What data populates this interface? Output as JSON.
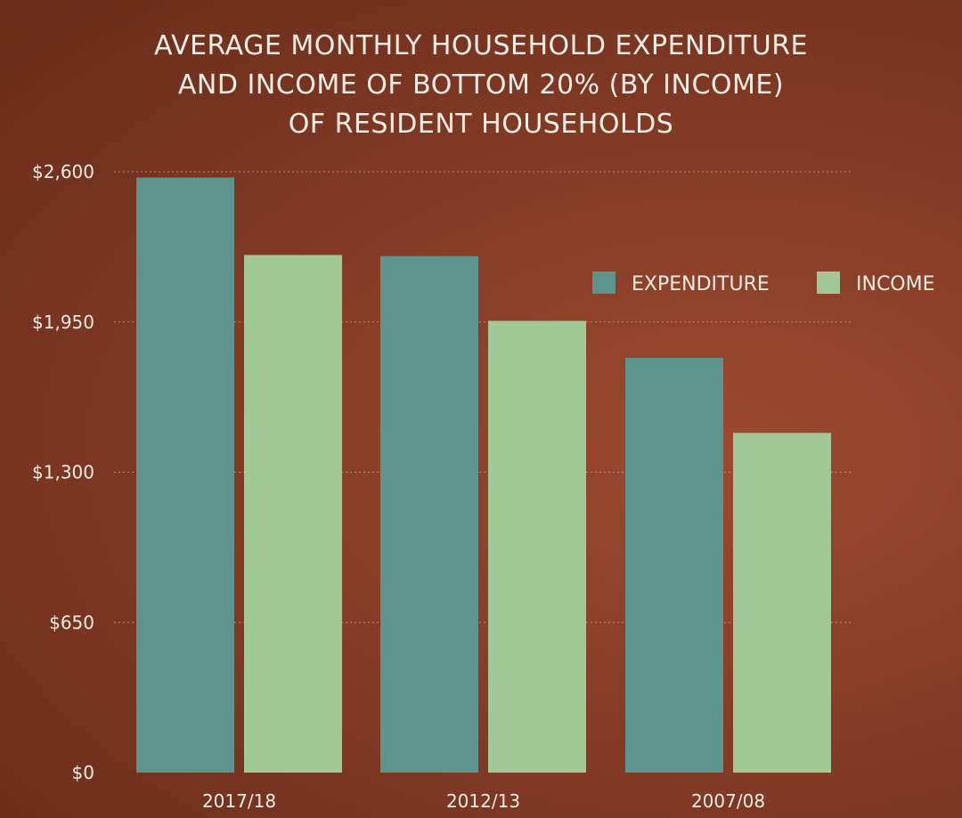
{
  "chart_data": {
    "type": "bar",
    "title_lines": [
      "AVERAGE MONTHLY HOUSEHOLD EXPENDITURE",
      "AND INCOME OF BOTTOM 20% (BY INCOME)",
      "OF RESIDENT HOUSEHOLDS"
    ],
    "categories": [
      "2017/18",
      "2012/13",
      "2007/08"
    ],
    "series": [
      {
        "name": "EXPENDITURE",
        "values": [
          2575,
          2235,
          1795
        ],
        "color": "#5e948e"
      },
      {
        "name": "INCOME",
        "values": [
          2240,
          1955,
          1470
        ],
        "color": "#a2c898"
      }
    ],
    "y_ticks": [
      {
        "value": 0,
        "label": "$0"
      },
      {
        "value": 650,
        "label": "$650"
      },
      {
        "value": 1300,
        "label": "$1,300"
      },
      {
        "value": 1950,
        "label": "$1,950"
      },
      {
        "value": 2600,
        "label": "$2,600"
      }
    ],
    "ylim": [
      0,
      2600
    ],
    "grid": true,
    "legend_position": "right",
    "gridline_color": "#c79f8f",
    "text_color": "#f6ece6"
  }
}
